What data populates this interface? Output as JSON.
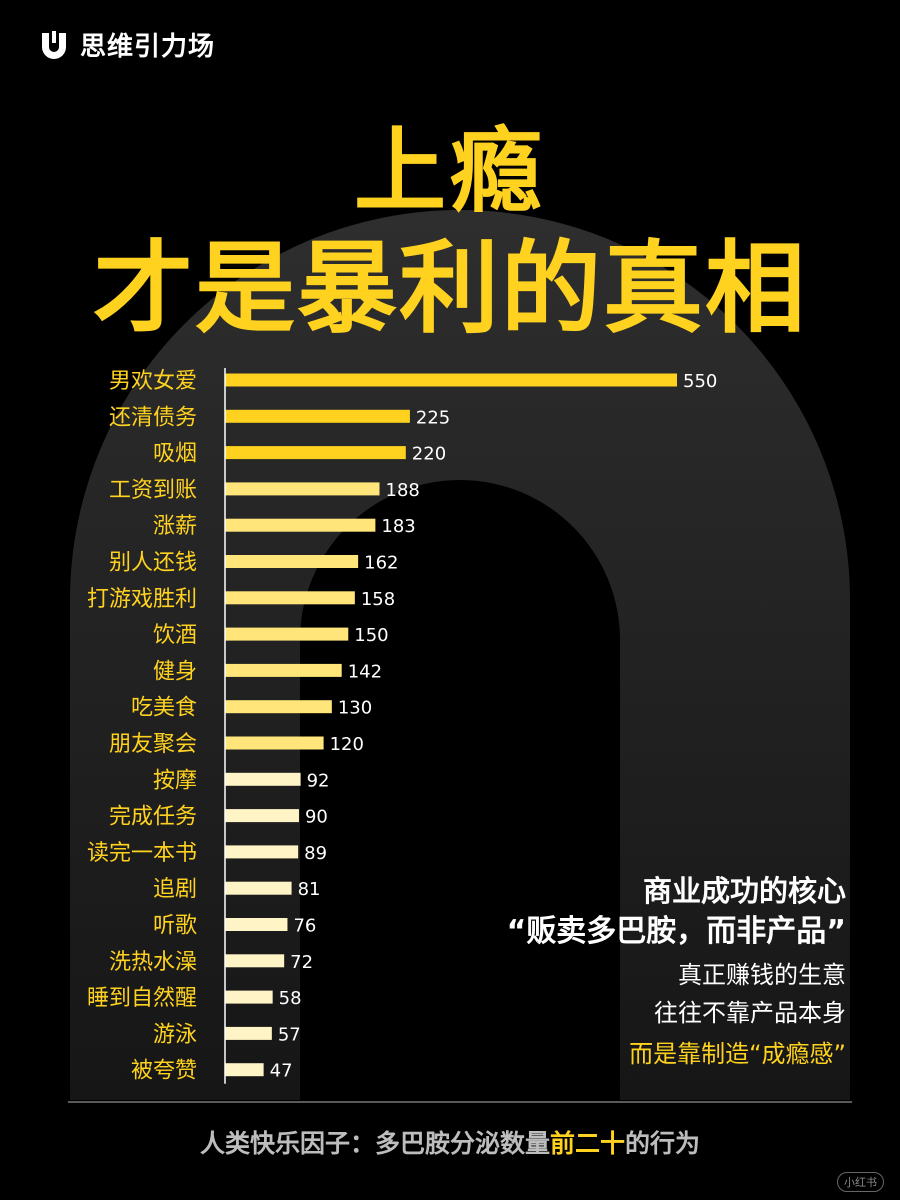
{
  "brand": {
    "name": "思维引力场",
    "logo_icon": "u-logo-icon"
  },
  "title": {
    "line1": "上瘾",
    "line2": "才是暴利的真相"
  },
  "chart_data": {
    "type": "bar",
    "orientation": "horizontal",
    "categories": [
      "男欢女爱",
      "还清债务",
      "吸烟",
      "工资到账",
      "涨薪",
      "别人还钱",
      "打游戏胜利",
      "饮酒",
      "健身",
      "吃美食",
      "朋友聚会",
      "按摩",
      "完成任务",
      "读完一本书",
      "追剧",
      "听歌",
      "洗热水澡",
      "睡到自然醒",
      "游泳",
      "被夸赞"
    ],
    "values": [
      550,
      225,
      220,
      188,
      183,
      162,
      158,
      150,
      142,
      130,
      120,
      92,
      90,
      89,
      81,
      76,
      72,
      58,
      57,
      47
    ],
    "xlim": [
      0,
      550
    ],
    "data_labels": true,
    "colors": {
      "high": "#ffd21f",
      "mid": "#ffe57a",
      "low": "#fff4c6",
      "axis": "#ffffff"
    }
  },
  "side_note": {
    "heading1": "商业成功的核心",
    "heading2": "“贩卖多巴胺，而非产品”",
    "line1": "真正赚钱的生意",
    "line2": "往往不靠产品本身",
    "line3": "而是靠制造“成瘾感”"
  },
  "footer": {
    "prefix": "人类快乐因子：多巴胺分泌数量",
    "highlight": "前二十",
    "suffix": "的行为"
  },
  "watermark": "小红书",
  "colors": {
    "accent": "#ffd21f",
    "background": "#000000",
    "arch": "#232323"
  }
}
